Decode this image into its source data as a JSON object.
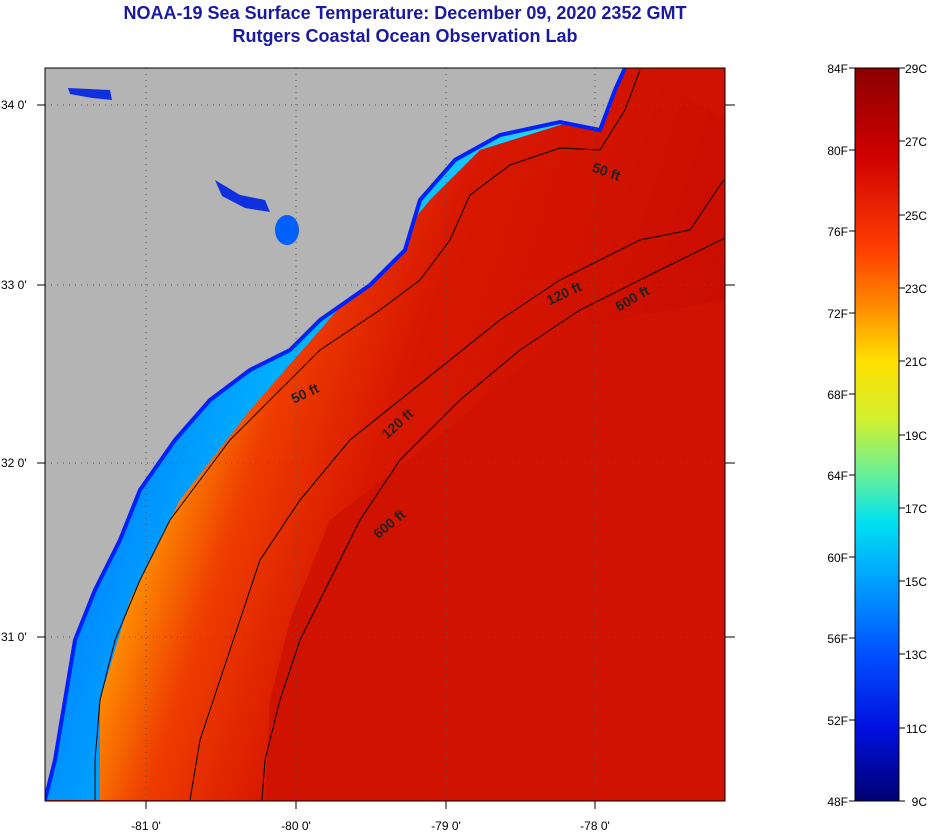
{
  "title": "NOAA-19 Sea Surface Temperature:  December 09, 2020 2352 GMT",
  "subtitle": "Rutgers Coastal Ocean Observation Lab",
  "map": {
    "lon_ticks": [
      "-81 0'",
      "-80 0'",
      "-79 0'",
      "-78 0'"
    ],
    "lat_ticks": [
      "34 0'",
      "33 0'",
      "32 0'",
      "31 0'"
    ],
    "depth_labels": [
      "50 ft",
      "120 ft",
      "600 ft",
      "50 ft",
      "120 ft",
      "600 ft"
    ],
    "colors": {
      "land": "#b4b4b4",
      "coast": "#0000ff",
      "ocean_warm": "#d81000"
    }
  },
  "colorbar": {
    "f_labels": [
      "84F",
      "80F",
      "76F",
      "72F",
      "68F",
      "64F",
      "60F",
      "56F",
      "52F",
      "48F"
    ],
    "c_labels": [
      "29C",
      "27C",
      "25C",
      "23C",
      "21C",
      "19C",
      "17C",
      "15C",
      "13C",
      "11C",
      "9C"
    ]
  }
}
